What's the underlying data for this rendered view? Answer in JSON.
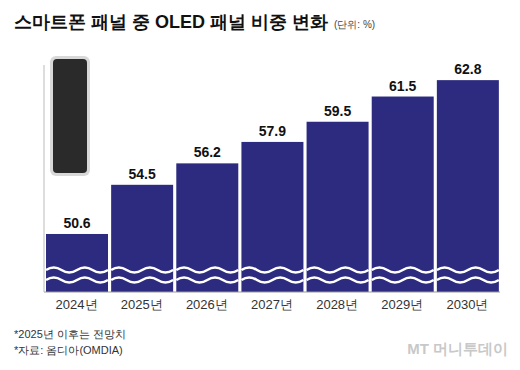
{
  "chart_data": {
    "type": "bar",
    "title": "스마트폰 패널 중 OLED 패널 비중 변화",
    "subtitle": "(단위: %)",
    "categories": [
      "2024년",
      "2025년",
      "2026년",
      "2027년",
      "2028년",
      "2029년",
      "2030년"
    ],
    "values": [
      50.6,
      54.5,
      56.2,
      57.9,
      59.5,
      61.5,
      62.8
    ],
    "color": "#2d2b7f",
    "ylim": [
      46,
      64
    ],
    "data_labels": true,
    "tick_labels": "x",
    "grid": false,
    "annotations": [
      "*2025년 이후는 전망치",
      "*자료: 옴디아(OMDIA)",
      "MT 머니투데이"
    ]
  }
}
